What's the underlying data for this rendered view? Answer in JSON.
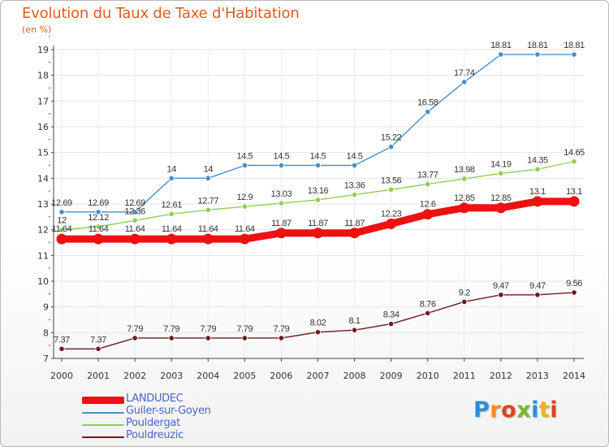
{
  "title": "Evolution du Taux de Taxe d'Habitation",
  "subtitle": "(en %)",
  "chart_data": {
    "type": "line",
    "x": [
      "2000",
      "2001",
      "2002",
      "2003",
      "2004",
      "2005",
      "2006",
      "2007",
      "2008",
      "2009",
      "2010",
      "2011",
      "2012",
      "2013",
      "2014"
    ],
    "ylim": [
      7,
      19
    ],
    "yticks": [
      7,
      8,
      9,
      10,
      11,
      12,
      13,
      14,
      15,
      16,
      17,
      18,
      19
    ],
    "series": [
      {
        "name": "Guiler-sur-Goyen",
        "color": "#4a8fc8",
        "weight": "thin",
        "values": [
          12.69,
          12.69,
          12.69,
          14,
          14,
          14.5,
          14.5,
          14.5,
          14.5,
          15.22,
          16.58,
          17.74,
          18.81,
          18.81,
          18.81
        ],
        "labels": [
          "12.69",
          "12.69",
          "12.69",
          "14",
          "14",
          "14.5",
          "14.5",
          "14.5",
          "14.5",
          "15.22",
          "16.58",
          "17.74",
          "18.81",
          "18.81",
          "18.81"
        ]
      },
      {
        "name": "Pouldergat",
        "color": "#8fd050",
        "weight": "thin",
        "values": [
          12,
          12.12,
          12.36,
          12.61,
          12.77,
          12.9,
          13.03,
          13.16,
          13.36,
          13.56,
          13.77,
          13.98,
          14.19,
          14.35,
          14.65
        ],
        "labels": [
          "12",
          "12.12",
          "12.36",
          "12.61",
          "12.77",
          "12.9",
          "13.03",
          "13.16",
          "13.36",
          "13.56",
          "13.77",
          "13.98",
          "14.19",
          "14.35",
          "14.65"
        ]
      },
      {
        "name": "LANDUDEC",
        "color": "#ee1111",
        "weight": "thick",
        "values": [
          11.64,
          11.64,
          11.64,
          11.64,
          11.64,
          11.64,
          11.87,
          11.87,
          11.87,
          12.23,
          12.6,
          12.85,
          12.85,
          13.1,
          13.1
        ],
        "labels": [
          "11.64",
          "11.64",
          "11.64",
          "11.64",
          "11.64",
          "11.64",
          "11.87",
          "11.87",
          "11.87",
          "12.23",
          "12.6",
          "12.85",
          "12.85",
          "13.1",
          "13.1"
        ]
      },
      {
        "name": "Pouldreuzic",
        "color": "#6b1d1d",
        "weight": "thin",
        "values": [
          7.37,
          7.37,
          7.79,
          7.79,
          7.79,
          7.79,
          7.79,
          8.02,
          8.1,
          8.34,
          8.76,
          9.2,
          9.47,
          9.47,
          9.56
        ],
        "labels": [
          "7.37",
          "7.37",
          "7.79",
          "7.79",
          "7.79",
          "7.79",
          "7.79",
          "8.02",
          "8.1",
          "8.34",
          "8.76",
          "9.2",
          "9.47",
          "9.47",
          "9.56"
        ]
      }
    ]
  },
  "legend": [
    {
      "name": "LANDUDEC",
      "color": "#ee1111",
      "thick": true
    },
    {
      "name": "Guiler-sur-Goyen",
      "color": "#4a8fc8",
      "thick": false
    },
    {
      "name": "Pouldergat",
      "color": "#8fd050",
      "thick": false
    },
    {
      "name": "Pouldreuzic",
      "color": "#6b1d1d",
      "thick": false
    }
  ],
  "logo": {
    "letters": [
      "P",
      "r",
      "o",
      "x",
      "i",
      "t",
      "i"
    ],
    "colors": [
      "#2d8fd6",
      "#f28c1e",
      "#e0421e",
      "#7ab82c",
      "#2d8fd6",
      "#f2b01e",
      "#e0421e"
    ]
  }
}
